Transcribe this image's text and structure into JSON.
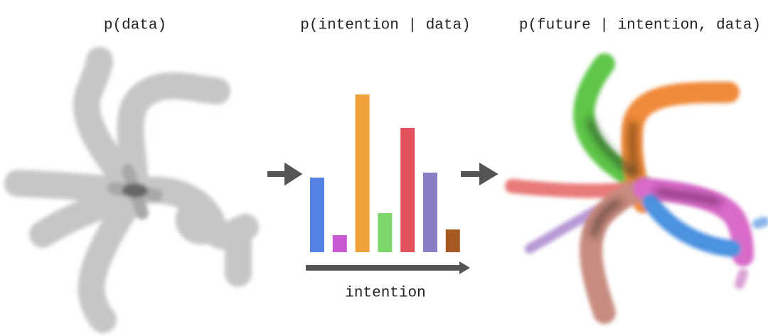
{
  "titles": [
    "p(data)",
    "p(intention | data)",
    "p(future | intention, data)"
  ],
  "chart": {
    "type": "bar",
    "values": [
      105,
      24,
      222,
      55,
      175,
      112,
      32
    ],
    "colors": [
      "#5580e6",
      "#c95ad3",
      "#f0a23a",
      "#7dd66a",
      "#e2515d",
      "#8c7ec4",
      "#a65a22"
    ],
    "xlabel": "intention"
  }
}
